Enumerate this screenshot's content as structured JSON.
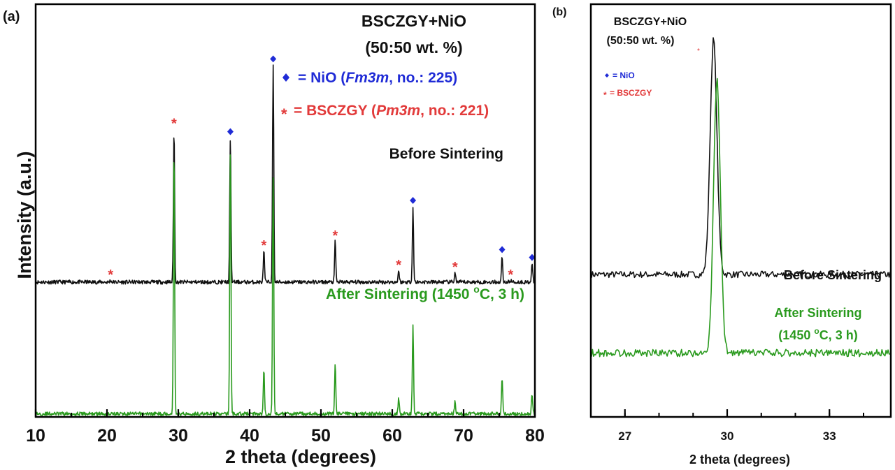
{
  "colors": {
    "before": "#111111",
    "after": "#2a9a1e",
    "nio": "#1f2bd6",
    "bsczgy": "#e23a3a",
    "axis": "#000000"
  },
  "chart_data": [
    {
      "panel_label": "(a)",
      "type": "line",
      "title_line1": "BSCZGY+NiO",
      "title_line2": "(50:50 wt. %)",
      "xlabel": "2 theta (degrees)",
      "ylabel": "Intensity (a.u.)",
      "xlim": [
        10,
        80
      ],
      "ylim": [
        0,
        105
      ],
      "x_ticks": [
        "10",
        "20",
        "30",
        "40",
        "50",
        "60",
        "70",
        "80"
      ],
      "legend": {
        "nio": {
          "prefix": "= NiO (",
          "italic": "Fm3m",
          "suffix": ", no.: 225)"
        },
        "bsczgy": {
          "prefix": "= BSCZGY (",
          "italic": "Pm3m",
          "suffix": ", no.: 221)"
        }
      },
      "series": [
        {
          "name": "Before Sintering",
          "label": "Before Sintering",
          "baseline": 34.3,
          "peaks": [
            {
              "x": 20.5,
              "h": 0.5,
              "phase": "bsczgy"
            },
            {
              "x": 29.4,
              "h": 39.0,
              "phase": "bsczgy"
            },
            {
              "x": 37.3,
              "h": 36.5,
              "phase": "nio"
            },
            {
              "x": 42.0,
              "h": 8.0,
              "phase": "bsczgy"
            },
            {
              "x": 43.3,
              "h": 55.0,
              "phase": "nio"
            },
            {
              "x": 52.0,
              "h": 10.5,
              "phase": "bsczgy"
            },
            {
              "x": 60.9,
              "h": 3.0,
              "phase": "bsczgy"
            },
            {
              "x": 62.9,
              "h": 19.0,
              "phase": "nio"
            },
            {
              "x": 68.8,
              "h": 2.5,
              "phase": "bsczgy"
            },
            {
              "x": 75.4,
              "h": 6.5,
              "phase": "nio"
            },
            {
              "x": 76.6,
              "h": 0.5,
              "phase": "bsczgy"
            },
            {
              "x": 79.6,
              "h": 4.5,
              "phase": "nio"
            }
          ]
        },
        {
          "name": "After Sintering",
          "label_prefix": "After Sintering (1450 ",
          "label_sup": "o",
          "label_suffix": "C, 3 h)",
          "baseline": 0.8,
          "peaks": [
            {
              "x": 29.4,
              "h": 68.0
            },
            {
              "x": 37.3,
              "h": 68.0
            },
            {
              "x": 42.0,
              "h": 11.5
            },
            {
              "x": 43.3,
              "h": 60.0
            },
            {
              "x": 52.0,
              "h": 13.0
            },
            {
              "x": 60.9,
              "h": 4.0
            },
            {
              "x": 62.9,
              "h": 22.5
            },
            {
              "x": 68.8,
              "h": 3.0
            },
            {
              "x": 75.4,
              "h": 9.0
            },
            {
              "x": 79.6,
              "h": 5.0
            }
          ]
        }
      ]
    },
    {
      "panel_label": "(b)",
      "type": "line",
      "title_line1": "BSCZGY+NiO",
      "title_line2": "(50:50 wt. %)",
      "xlabel": "2 theta (degrees)",
      "xlim": [
        26.0,
        34.8
      ],
      "ylim": [
        0,
        100
      ],
      "x_ticks": [
        "27",
        "30",
        "33"
      ],
      "legend": {
        "nio": "= NiO",
        "bsczgy": "= BSCZGY"
      },
      "series": [
        {
          "name": "Before Sintering",
          "label": "Before Sintering",
          "baseline": 34.5,
          "peaks": [
            {
              "x": 29.6,
              "h": 57.0
            }
          ]
        },
        {
          "name": "After Sintering",
          "label_line1": "After Sintering",
          "label_line2_prefix": "(1450 ",
          "label_sup": "o",
          "label_line2_suffix": "C, 3 h)",
          "baseline": 15.5,
          "peaks": [
            {
              "x": 29.7,
              "h": 66.0
            }
          ]
        }
      ]
    }
  ]
}
